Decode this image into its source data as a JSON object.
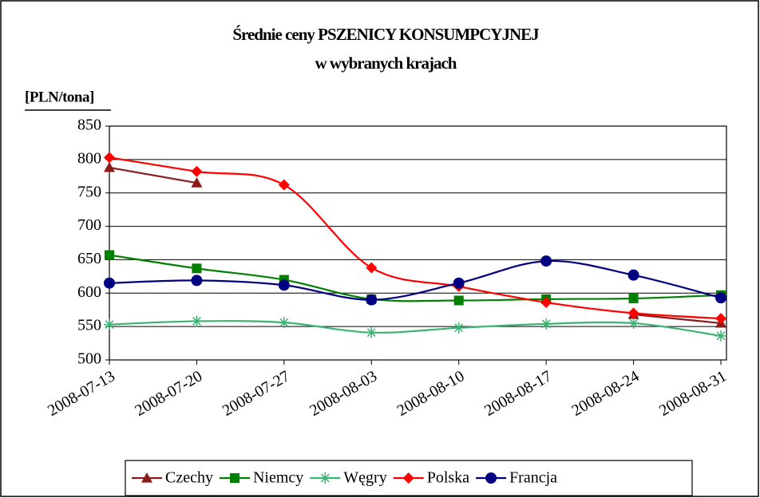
{
  "chart_data": {
    "type": "line",
    "title": "Średnie ceny PSZENICY KONSUMPCYJNEJ",
    "subtitle": "w wybranych krajach",
    "y_label": "[PLN/tona]",
    "categories": [
      "2008-07-13",
      "2008-07-20",
      "2008-07-27",
      "2008-08-03",
      "2008-08-10",
      "2008-08-17",
      "2008-08-24",
      "2008-08-31"
    ],
    "series": [
      {
        "name": "Czechy",
        "color": "#8b1a1a",
        "marker": "triangle",
        "values": [
          788,
          765,
          null,
          null,
          null,
          null,
          568,
          555
        ]
      },
      {
        "name": "Niemcy",
        "color": "#008000",
        "marker": "square",
        "values": [
          657,
          637,
          620,
          591,
          589,
          591,
          592,
          597
        ]
      },
      {
        "name": "Węgry",
        "color": "#3cb371",
        "marker": "star",
        "values": [
          553,
          558,
          556,
          541,
          548,
          554,
          555,
          536
        ]
      },
      {
        "name": "Polska",
        "color": "#ff0000",
        "marker": "diamond",
        "values": [
          803,
          782,
          762,
          638,
          610,
          586,
          570,
          562
        ]
      },
      {
        "name": "Francja",
        "color": "#000080",
        "marker": "circle",
        "values": [
          615,
          619,
          612,
          590,
          615,
          648,
          627,
          593
        ]
      }
    ],
    "ylim": [
      500,
      850
    ],
    "yticks": [
      500,
      550,
      600,
      650,
      700,
      750,
      800,
      850
    ],
    "grid": true,
    "smooth": true,
    "legend": "bottom"
  }
}
